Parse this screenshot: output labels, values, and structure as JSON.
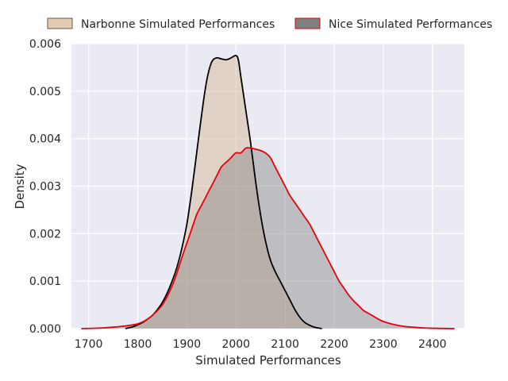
{
  "chart_data": {
    "type": "area",
    "xlabel": "Simulated Performances",
    "ylabel": "Density",
    "xlim": [
      1665,
      2465
    ],
    "ylim": [
      0,
      0.006
    ],
    "xticks": [
      1700,
      1800,
      1900,
      2000,
      2100,
      2200,
      2300,
      2400
    ],
    "yticks": [
      0.0,
      0.001,
      0.002,
      0.003,
      0.004,
      0.005,
      0.006
    ],
    "xtick_labels": [
      "1700",
      "1800",
      "1900",
      "2000",
      "2100",
      "2200",
      "2300",
      "2400"
    ],
    "ytick_labels": [
      "0.000",
      "0.001",
      "0.002",
      "0.003",
      "0.004",
      "0.005",
      "0.006"
    ],
    "grid": true,
    "legend_position": "top",
    "background_color": "#EAEAF2",
    "series": [
      {
        "name": "Narbonne Simulated Performances",
        "fill_color": "#D2AF8C",
        "fill_opacity": 0.42,
        "line_color": "#000000",
        "points": [
          [
            1775,
            0.0
          ],
          [
            1790,
            4e-05
          ],
          [
            1800,
            8e-05
          ],
          [
            1810,
            0.00013
          ],
          [
            1820,
            0.0002
          ],
          [
            1830,
            0.00028
          ],
          [
            1840,
            0.0004
          ],
          [
            1850,
            0.00055
          ],
          [
            1860,
            0.00075
          ],
          [
            1870,
            0.001
          ],
          [
            1880,
            0.0013
          ],
          [
            1890,
            0.0017
          ],
          [
            1900,
            0.0022
          ],
          [
            1910,
            0.0029
          ],
          [
            1920,
            0.0037
          ],
          [
            1930,
            0.0045
          ],
          [
            1940,
            0.0052
          ],
          [
            1950,
            0.0056
          ],
          [
            1960,
            0.0057
          ],
          [
            1970,
            0.00568
          ],
          [
            1980,
            0.00566
          ],
          [
            1990,
            0.0057
          ],
          [
            2000,
            0.00575
          ],
          [
            2005,
            0.00565
          ],
          [
            2010,
            0.0053
          ],
          [
            2020,
            0.0046
          ],
          [
            2030,
            0.0039
          ],
          [
            2040,
            0.0031
          ],
          [
            2050,
            0.0024
          ],
          [
            2060,
            0.00185
          ],
          [
            2070,
            0.00145
          ],
          [
            2080,
            0.0012
          ],
          [
            2090,
            0.001
          ],
          [
            2100,
            0.0008
          ],
          [
            2110,
            0.0006
          ],
          [
            2120,
            0.0004
          ],
          [
            2130,
            0.00024
          ],
          [
            2140,
            0.00013
          ],
          [
            2150,
            7e-05
          ],
          [
            2160,
            3e-05
          ],
          [
            2175,
            0.0
          ]
        ]
      },
      {
        "name": "Nice Simulated Performances",
        "fill_color": "#808080",
        "fill_opacity": 0.42,
        "line_color": "#E8000B",
        "points": [
          [
            1685,
            0.0
          ],
          [
            1720,
            1e-05
          ],
          [
            1750,
            3e-05
          ],
          [
            1770,
            5e-05
          ],
          [
            1790,
            8e-05
          ],
          [
            1800,
            0.0001
          ],
          [
            1810,
            0.00014
          ],
          [
            1820,
            0.0002
          ],
          [
            1830,
            0.00028
          ],
          [
            1840,
            0.00038
          ],
          [
            1850,
            0.0005
          ],
          [
            1860,
            0.00068
          ],
          [
            1870,
            0.0009
          ],
          [
            1880,
            0.00118
          ],
          [
            1890,
            0.0015
          ],
          [
            1900,
            0.0018
          ],
          [
            1910,
            0.0021
          ],
          [
            1920,
            0.0024
          ],
          [
            1930,
            0.0026
          ],
          [
            1940,
            0.0028
          ],
          [
            1950,
            0.003
          ],
          [
            1960,
            0.0032
          ],
          [
            1970,
            0.0034
          ],
          [
            1980,
            0.0035
          ],
          [
            1990,
            0.0036
          ],
          [
            2000,
            0.0037
          ],
          [
            2010,
            0.0037
          ],
          [
            2020,
            0.0038
          ],
          [
            2030,
            0.0038
          ],
          [
            2040,
            0.00378
          ],
          [
            2050,
            0.00375
          ],
          [
            2060,
            0.0037
          ],
          [
            2070,
            0.0036
          ],
          [
            2080,
            0.0034
          ],
          [
            2090,
            0.0032
          ],
          [
            2100,
            0.003
          ],
          [
            2110,
            0.0028
          ],
          [
            2120,
            0.00265
          ],
          [
            2130,
            0.0025
          ],
          [
            2140,
            0.00235
          ],
          [
            2150,
            0.0022
          ],
          [
            2160,
            0.002
          ],
          [
            2170,
            0.0018
          ],
          [
            2180,
            0.0016
          ],
          [
            2190,
            0.0014
          ],
          [
            2200,
            0.0012
          ],
          [
            2210,
            0.001
          ],
          [
            2220,
            0.00085
          ],
          [
            2230,
            0.0007
          ],
          [
            2240,
            0.00058
          ],
          [
            2250,
            0.00048
          ],
          [
            2260,
            0.00038
          ],
          [
            2270,
            0.00032
          ],
          [
            2280,
            0.00026
          ],
          [
            2290,
            0.0002
          ],
          [
            2300,
            0.00015
          ],
          [
            2320,
            9e-05
          ],
          [
            2340,
            5e-05
          ],
          [
            2360,
            3e-05
          ],
          [
            2380,
            1.5e-05
          ],
          [
            2400,
            7e-06
          ],
          [
            2445,
            0.0
          ]
        ]
      }
    ]
  }
}
